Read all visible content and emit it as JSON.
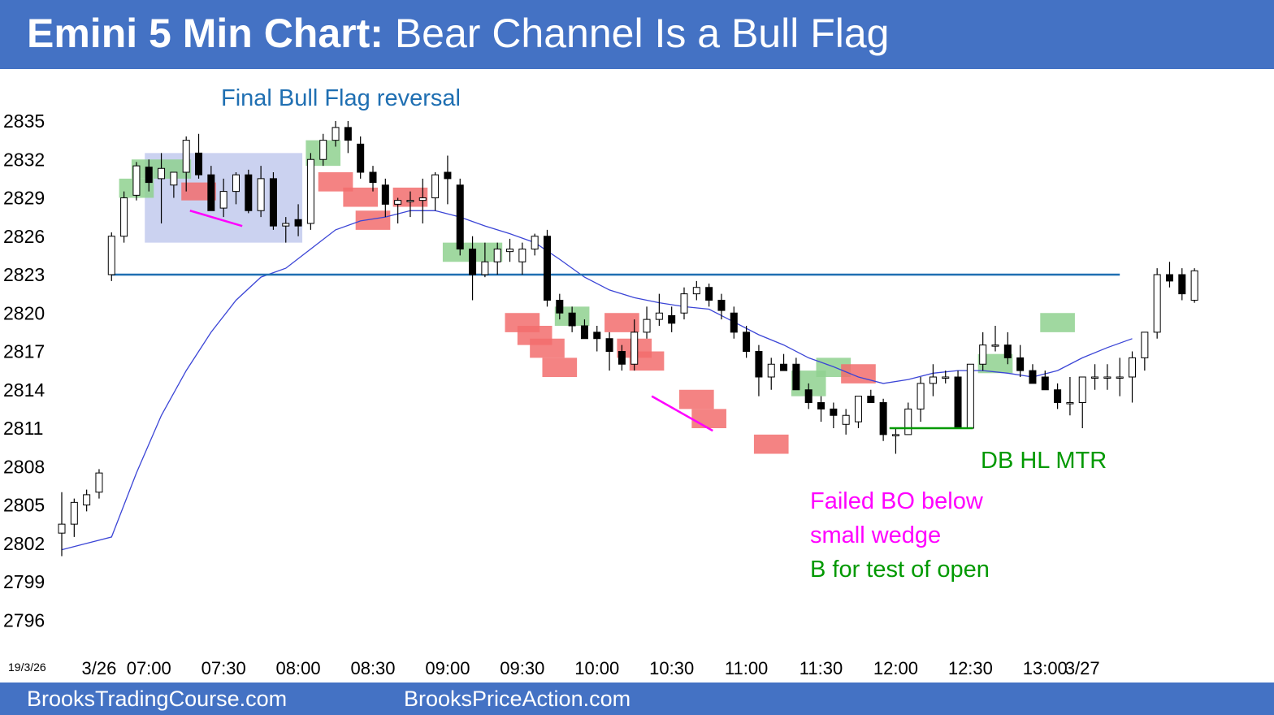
{
  "header": {
    "title_bold": "Emini 5 Min Chart:",
    "title_rest": " Bear Channel Is a Bull Flag"
  },
  "footer": {
    "left_link": "BrooksTradingCourse.com",
    "center_link": "BrooksPriceAction.com"
  },
  "colors": {
    "header_bg": "#4472c4",
    "bull_box": "#8fd18f",
    "bear_box": "#f26d6d",
    "range_box": "#c5cdee",
    "ema": "#3b45d6",
    "hline": "#1f6fb2",
    "annotation_blue": "#1f6fb2",
    "annotation_magenta": "#ff00ff",
    "annotation_green": "#009900"
  },
  "chart_data": {
    "type": "candlestick",
    "date_label": "19/3/26",
    "y_ticks": [
      2835,
      2832,
      2829,
      2826,
      2823,
      2820,
      2817,
      2814,
      2811,
      2808,
      2805,
      2802,
      2799,
      2796
    ],
    "ylim": [
      2794.5,
      2836.5
    ],
    "x_ticks": [
      {
        "label": "3/26",
        "bar": 3
      },
      {
        "label": "07:00",
        "bar": 7
      },
      {
        "label": "07:30",
        "bar": 13
      },
      {
        "label": "08:00",
        "bar": 19
      },
      {
        "label": "08:30",
        "bar": 25
      },
      {
        "label": "09:00",
        "bar": 31
      },
      {
        "label": "09:30",
        "bar": 37
      },
      {
        "label": "10:00",
        "bar": 43
      },
      {
        "label": "10:30",
        "bar": 49
      },
      {
        "label": "11:00",
        "bar": 55
      },
      {
        "label": "11:30",
        "bar": 61
      },
      {
        "label": "12:00",
        "bar": 67
      },
      {
        "label": "12:30",
        "bar": 73
      },
      {
        "label": "13:00",
        "bar": 79
      },
      {
        "label": "3/27",
        "bar": 82
      }
    ],
    "bars": [
      {
        "o": 2802.8,
        "h": 2806.0,
        "l": 2801.0,
        "c": 2803.5
      },
      {
        "o": 2803.5,
        "h": 2805.5,
        "l": 2802.5,
        "c": 2805.2
      },
      {
        "o": 2805.0,
        "h": 2806.2,
        "l": 2804.5,
        "c": 2805.8
      },
      {
        "o": 2806.0,
        "h": 2807.8,
        "l": 2805.5,
        "c": 2807.5
      },
      {
        "o": 2823.0,
        "h": 2826.3,
        "l": 2822.5,
        "c": 2826.0
      },
      {
        "o": 2826.0,
        "h": 2829.5,
        "l": 2825.5,
        "c": 2829.0
      },
      {
        "o": 2829.2,
        "h": 2831.8,
        "l": 2828.8,
        "c": 2831.5
      },
      {
        "o": 2831.4,
        "h": 2832.0,
        "l": 2829.5,
        "c": 2830.2
      },
      {
        "o": 2830.5,
        "h": 2832.5,
        "l": 2827.0,
        "c": 2831.3
      },
      {
        "o": 2830.0,
        "h": 2831.0,
        "l": 2829.0,
        "c": 2831.0
      },
      {
        "o": 2831.0,
        "h": 2833.8,
        "l": 2829.5,
        "c": 2833.5
      },
      {
        "o": 2832.5,
        "h": 2834.0,
        "l": 2830.5,
        "c": 2830.8
      },
      {
        "o": 2830.8,
        "h": 2831.5,
        "l": 2828.0,
        "c": 2828.0
      },
      {
        "o": 2828.2,
        "h": 2830.5,
        "l": 2827.5,
        "c": 2829.5
      },
      {
        "o": 2829.5,
        "h": 2831.0,
        "l": 2828.5,
        "c": 2830.8
      },
      {
        "o": 2830.8,
        "h": 2831.2,
        "l": 2827.8,
        "c": 2828.0
      },
      {
        "o": 2828.0,
        "h": 2831.5,
        "l": 2827.5,
        "c": 2830.5
      },
      {
        "o": 2830.5,
        "h": 2831.0,
        "l": 2826.5,
        "c": 2826.8
      },
      {
        "o": 2826.8,
        "h": 2827.5,
        "l": 2825.5,
        "c": 2827.0
      },
      {
        "o": 2827.3,
        "h": 2828.5,
        "l": 2826.0,
        "c": 2826.8
      },
      {
        "o": 2827.0,
        "h": 2832.5,
        "l": 2826.5,
        "c": 2832.0
      },
      {
        "o": 2832.0,
        "h": 2834.0,
        "l": 2831.5,
        "c": 2833.5
      },
      {
        "o": 2833.5,
        "h": 2835.0,
        "l": 2833.0,
        "c": 2834.5
      },
      {
        "o": 2834.5,
        "h": 2835.0,
        "l": 2832.5,
        "c": 2833.5
      },
      {
        "o": 2833.2,
        "h": 2833.8,
        "l": 2830.5,
        "c": 2831.0
      },
      {
        "o": 2831.0,
        "h": 2831.5,
        "l": 2829.5,
        "c": 2830.2
      },
      {
        "o": 2830.0,
        "h": 2830.5,
        "l": 2827.5,
        "c": 2828.5
      },
      {
        "o": 2828.5,
        "h": 2829.0,
        "l": 2827.0,
        "c": 2828.8
      },
      {
        "o": 2828.7,
        "h": 2829.5,
        "l": 2827.5,
        "c": 2828.8
      },
      {
        "o": 2828.8,
        "h": 2830.5,
        "l": 2827.0,
        "c": 2829.0
      },
      {
        "o": 2829.0,
        "h": 2831.0,
        "l": 2828.0,
        "c": 2830.8
      },
      {
        "o": 2831.0,
        "h": 2832.3,
        "l": 2828.5,
        "c": 2830.5
      },
      {
        "o": 2830.0,
        "h": 2830.5,
        "l": 2824.5,
        "c": 2825.0
      },
      {
        "o": 2825.0,
        "h": 2826.0,
        "l": 2821.0,
        "c": 2823.0
      },
      {
        "o": 2823.0,
        "h": 2825.5,
        "l": 2822.8,
        "c": 2824.0
      },
      {
        "o": 2824.0,
        "h": 2825.5,
        "l": 2823.0,
        "c": 2825.0
      },
      {
        "o": 2824.8,
        "h": 2825.8,
        "l": 2824.0,
        "c": 2825.0
      },
      {
        "o": 2824.0,
        "h": 2825.5,
        "l": 2823.0,
        "c": 2825.0
      },
      {
        "o": 2825.0,
        "h": 2826.2,
        "l": 2824.5,
        "c": 2826.0
      },
      {
        "o": 2826.0,
        "h": 2826.5,
        "l": 2820.5,
        "c": 2821.0
      },
      {
        "o": 2821.0,
        "h": 2821.5,
        "l": 2819.5,
        "c": 2820.0
      },
      {
        "o": 2820.0,
        "h": 2820.5,
        "l": 2818.5,
        "c": 2819.0
      },
      {
        "o": 2819.0,
        "h": 2819.5,
        "l": 2818.0,
        "c": 2818.0
      },
      {
        "o": 2818.5,
        "h": 2819.0,
        "l": 2817.0,
        "c": 2818.0
      },
      {
        "o": 2818.0,
        "h": 2818.5,
        "l": 2815.5,
        "c": 2817.0
      },
      {
        "o": 2817.0,
        "h": 2817.5,
        "l": 2815.5,
        "c": 2816.0
      },
      {
        "o": 2816.0,
        "h": 2819.5,
        "l": 2815.5,
        "c": 2818.5
      },
      {
        "o": 2818.5,
        "h": 2820.5,
        "l": 2818.0,
        "c": 2819.5
      },
      {
        "o": 2819.5,
        "h": 2821.5,
        "l": 2819.0,
        "c": 2820.0
      },
      {
        "o": 2819.8,
        "h": 2820.5,
        "l": 2818.5,
        "c": 2819.2
      },
      {
        "o": 2820.0,
        "h": 2822.0,
        "l": 2819.5,
        "c": 2821.5
      },
      {
        "o": 2821.5,
        "h": 2822.5,
        "l": 2821.0,
        "c": 2822.0
      },
      {
        "o": 2822.0,
        "h": 2822.3,
        "l": 2820.5,
        "c": 2821.0
      },
      {
        "o": 2821.0,
        "h": 2821.5,
        "l": 2819.5,
        "c": 2820.2
      },
      {
        "o": 2820.0,
        "h": 2820.5,
        "l": 2818.0,
        "c": 2818.5
      },
      {
        "o": 2818.5,
        "h": 2819.0,
        "l": 2816.5,
        "c": 2817.0
      },
      {
        "o": 2817.0,
        "h": 2817.5,
        "l": 2813.5,
        "c": 2815.0
      },
      {
        "o": 2815.0,
        "h": 2816.5,
        "l": 2814.0,
        "c": 2816.0
      },
      {
        "o": 2816.0,
        "h": 2816.8,
        "l": 2815.5,
        "c": 2815.5
      },
      {
        "o": 2816.0,
        "h": 2816.5,
        "l": 2814.0,
        "c": 2814.0
      },
      {
        "o": 2814.0,
        "h": 2814.5,
        "l": 2812.5,
        "c": 2813.0
      },
      {
        "o": 2813.0,
        "h": 2813.5,
        "l": 2811.5,
        "c": 2812.5
      },
      {
        "o": 2812.5,
        "h": 2813.0,
        "l": 2811.0,
        "c": 2812.0
      },
      {
        "o": 2811.3,
        "h": 2812.5,
        "l": 2810.5,
        "c": 2812.0
      },
      {
        "o": 2811.5,
        "h": 2813.5,
        "l": 2811.0,
        "c": 2813.5
      },
      {
        "o": 2813.5,
        "h": 2814.0,
        "l": 2813.0,
        "c": 2813.0
      },
      {
        "o": 2813.0,
        "h": 2813.3,
        "l": 2810.0,
        "c": 2810.5
      },
      {
        "o": 2810.5,
        "h": 2811.0,
        "l": 2809.0,
        "c": 2810.5
      },
      {
        "o": 2810.5,
        "h": 2813.0,
        "l": 2810.5,
        "c": 2812.5
      },
      {
        "o": 2812.5,
        "h": 2815.0,
        "l": 2811.5,
        "c": 2814.5
      },
      {
        "o": 2814.5,
        "h": 2816.0,
        "l": 2813.5,
        "c": 2815.0
      },
      {
        "o": 2815.0,
        "h": 2815.5,
        "l": 2814.5,
        "c": 2815.0
      },
      {
        "o": 2815.0,
        "h": 2815.5,
        "l": 2811.0,
        "c": 2811.0
      },
      {
        "o": 2811.0,
        "h": 2816.0,
        "l": 2811.0,
        "c": 2816.0
      },
      {
        "o": 2816.0,
        "h": 2818.5,
        "l": 2815.5,
        "c": 2817.5
      },
      {
        "o": 2817.5,
        "h": 2819.0,
        "l": 2817.0,
        "c": 2817.5
      },
      {
        "o": 2817.5,
        "h": 2818.5,
        "l": 2816.0,
        "c": 2816.5
      },
      {
        "o": 2816.5,
        "h": 2817.5,
        "l": 2815.0,
        "c": 2815.5
      },
      {
        "o": 2815.5,
        "h": 2816.0,
        "l": 2814.5,
        "c": 2814.5
      },
      {
        "o": 2815.0,
        "h": 2815.5,
        "l": 2814.0,
        "c": 2814.0
      },
      {
        "o": 2814.0,
        "h": 2814.5,
        "l": 2812.5,
        "c": 2813.0
      },
      {
        "o": 2813.0,
        "h": 2815.0,
        "l": 2812.0,
        "c": 2813.0
      },
      {
        "o": 2813.0,
        "h": 2815.0,
        "l": 2811.0,
        "c": 2815.0
      },
      {
        "o": 2815.0,
        "h": 2816.0,
        "l": 2814.0,
        "c": 2815.0
      },
      {
        "o": 2815.0,
        "h": 2816.0,
        "l": 2814.0,
        "c": 2815.0
      },
      {
        "o": 2815.0,
        "h": 2816.5,
        "l": 2813.5,
        "c": 2815.0
      },
      {
        "o": 2815.0,
        "h": 2817.0,
        "l": 2813.0,
        "c": 2816.5
      },
      {
        "o": 2816.5,
        "h": 2818.5,
        "l": 2815.5,
        "c": 2818.5
      },
      {
        "o": 2818.5,
        "h": 2823.5,
        "l": 2818.0,
        "c": 2823.0
      },
      {
        "o": 2823.0,
        "h": 2824.0,
        "l": 2822.0,
        "c": 2822.5
      },
      {
        "o": 2823.0,
        "h": 2823.5,
        "l": 2821.0,
        "c": 2821.5
      },
      {
        "o": 2821.0,
        "h": 2823.5,
        "l": 2820.8,
        "c": 2823.3
      }
    ],
    "ema": [
      {
        "bar": 0,
        "y": 2801.5
      },
      {
        "bar": 2,
        "y": 2802.0
      },
      {
        "bar": 4,
        "y": 2802.5
      },
      {
        "bar": 6,
        "y": 2807.5
      },
      {
        "bar": 8,
        "y": 2812.0
      },
      {
        "bar": 10,
        "y": 2815.5
      },
      {
        "bar": 12,
        "y": 2818.5
      },
      {
        "bar": 14,
        "y": 2821.0
      },
      {
        "bar": 16,
        "y": 2822.8
      },
      {
        "bar": 18,
        "y": 2823.5
      },
      {
        "bar": 20,
        "y": 2825.0
      },
      {
        "bar": 22,
        "y": 2826.5
      },
      {
        "bar": 24,
        "y": 2827.2
      },
      {
        "bar": 26,
        "y": 2827.5
      },
      {
        "bar": 28,
        "y": 2828.0
      },
      {
        "bar": 30,
        "y": 2828.0
      },
      {
        "bar": 32,
        "y": 2827.5
      },
      {
        "bar": 34,
        "y": 2826.8
      },
      {
        "bar": 36,
        "y": 2826.2
      },
      {
        "bar": 38,
        "y": 2825.5
      },
      {
        "bar": 40,
        "y": 2824.2
      },
      {
        "bar": 42,
        "y": 2822.8
      },
      {
        "bar": 44,
        "y": 2821.8
      },
      {
        "bar": 46,
        "y": 2821.2
      },
      {
        "bar": 48,
        "y": 2820.8
      },
      {
        "bar": 50,
        "y": 2820.5
      },
      {
        "bar": 52,
        "y": 2820.3
      },
      {
        "bar": 54,
        "y": 2819.3
      },
      {
        "bar": 56,
        "y": 2818.3
      },
      {
        "bar": 58,
        "y": 2817.5
      },
      {
        "bar": 60,
        "y": 2816.5
      },
      {
        "bar": 62,
        "y": 2815.8
      },
      {
        "bar": 64,
        "y": 2815.0
      },
      {
        "bar": 66,
        "y": 2814.5
      },
      {
        "bar": 68,
        "y": 2814.8
      },
      {
        "bar": 70,
        "y": 2815.3
      },
      {
        "bar": 72,
        "y": 2815.5
      },
      {
        "bar": 74,
        "y": 2815.5
      },
      {
        "bar": 76,
        "y": 2815.3
      },
      {
        "bar": 78,
        "y": 2815.0
      },
      {
        "bar": 80,
        "y": 2815.5
      },
      {
        "bar": 82,
        "y": 2816.5
      },
      {
        "bar": 84,
        "y": 2817.3
      },
      {
        "bar": 86,
        "y": 2818.0
      }
    ],
    "hline": {
      "y": 2823,
      "bar_from": 4,
      "bar_to": 85
    },
    "range_box": {
      "bar_from": 7,
      "bar_to": 19,
      "y_top": 2832.5,
      "y_bottom": 2825.5
    },
    "bull_boxes": [
      {
        "bar_from": 5,
        "bar_to": 7,
        "y_top": 2830.5,
        "y_bottom": 2829.0
      },
      {
        "bar_from": 6,
        "bar_to": 10,
        "y_top": 2832.0,
        "y_bottom": 2830.5
      },
      {
        "bar_from": 20,
        "bar_to": 22,
        "y_top": 2833.5,
        "y_bottom": 2831.5
      },
      {
        "bar_from": 31,
        "bar_to": 35,
        "y_top": 2825.5,
        "y_bottom": 2824.0
      },
      {
        "bar_from": 40,
        "bar_to": 42,
        "y_top": 2820.5,
        "y_bottom": 2819.0
      },
      {
        "bar_from": 59,
        "bar_to": 61,
        "y_top": 2815.5,
        "y_bottom": 2813.5
      },
      {
        "bar_from": 61,
        "bar_to": 63,
        "y_top": 2816.5,
        "y_bottom": 2815.0
      },
      {
        "bar_from": 74,
        "bar_to": 76,
        "y_top": 2816.8,
        "y_bottom": 2815.3
      },
      {
        "bar_from": 79,
        "bar_to": 81,
        "y_top": 2820.0,
        "y_bottom": 2818.5
      }
    ],
    "bear_boxes": [
      {
        "bar_from": 10,
        "bar_to": 12,
        "y_top": 2830.2,
        "y_bottom": 2828.8
      },
      {
        "bar_from": 21,
        "bar_to": 23,
        "y_top": 2831.0,
        "y_bottom": 2829.5
      },
      {
        "bar_from": 23,
        "bar_to": 25,
        "y_top": 2829.8,
        "y_bottom": 2828.3
      },
      {
        "bar_from": 24,
        "bar_to": 26,
        "y_top": 2828.0,
        "y_bottom": 2826.5
      },
      {
        "bar_from": 27,
        "bar_to": 29,
        "y_top": 2829.8,
        "y_bottom": 2828.3
      },
      {
        "bar_from": 36,
        "bar_to": 38,
        "y_top": 2820.0,
        "y_bottom": 2818.5
      },
      {
        "bar_from": 37,
        "bar_to": 39,
        "y_top": 2819.0,
        "y_bottom": 2817.5
      },
      {
        "bar_from": 38,
        "bar_to": 40,
        "y_top": 2818.0,
        "y_bottom": 2816.5
      },
      {
        "bar_from": 39,
        "bar_to": 41,
        "y_top": 2816.5,
        "y_bottom": 2815.0
      },
      {
        "bar_from": 44,
        "bar_to": 46,
        "y_top": 2820.0,
        "y_bottom": 2818.5
      },
      {
        "bar_from": 45,
        "bar_to": 47,
        "y_top": 2818.0,
        "y_bottom": 2816.5
      },
      {
        "bar_from": 46,
        "bar_to": 48,
        "y_top": 2817.0,
        "y_bottom": 2815.5
      },
      {
        "bar_from": 50,
        "bar_to": 52,
        "y_top": 2814.0,
        "y_bottom": 2812.5
      },
      {
        "bar_from": 51,
        "bar_to": 53,
        "y_top": 2812.5,
        "y_bottom": 2811.0
      },
      {
        "bar_from": 56,
        "bar_to": 58,
        "y_top": 2810.5,
        "y_bottom": 2809.0
      },
      {
        "bar_from": 63,
        "bar_to": 65,
        "y_top": 2816.0,
        "y_bottom": 2814.5
      }
    ],
    "trendlines": [
      {
        "color": "#ff00ff",
        "x1": 10.3,
        "y1": 2828.0,
        "x2": 14.5,
        "y2": 2826.8
      },
      {
        "color": "#ff00ff",
        "x1": 47.4,
        "y1": 2813.5,
        "x2": 52.3,
        "y2": 2810.8
      },
      {
        "color": "#009900",
        "x1": 66.5,
        "y1": 2811.0,
        "x2": 73.2,
        "y2": 2811.0
      }
    ],
    "annotations": [
      {
        "text": "Final Bull Flag reversal",
        "color": "#1f6fb2"
      },
      {
        "text": "DB HL MTR",
        "color": "#009900"
      },
      {
        "text": "Failed BO below",
        "color": "#ff00ff"
      },
      {
        "text": "small wedge",
        "color": "#ff00ff"
      },
      {
        "text": "B for test of open",
        "color": "#009900"
      }
    ]
  }
}
